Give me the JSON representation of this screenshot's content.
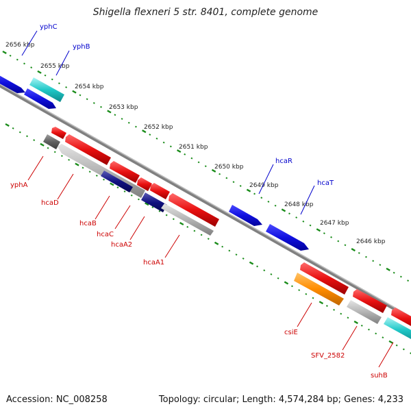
{
  "title": "Shigella flexneri 5 str. 8401, complete genome",
  "footer": {
    "accession": "Accession: NC_008258",
    "topology": "Topology: circular; Length: 4,574,284 bp; Genes: 4,233"
  },
  "colors": {
    "backbone": "#808080",
    "ruler": "#1a8c1a",
    "forward_label": "#0000cc",
    "reverse_label": "#cc0000",
    "gene_blue": "#1010e0",
    "gene_cyan": "#20c8c8",
    "gene_red": "#e81010",
    "gene_gray": "#a0a0a0",
    "gene_darkgray": "#606060",
    "gene_navy": "#101080",
    "gene_orange": "#ff8c00"
  },
  "ruler_labels": [
    "2656 kbp",
    "2655 kbp",
    "2654 kbp",
    "2653 kbp",
    "2652 kbp",
    "2651 kbp",
    "2650 kbp",
    "2649 kbp",
    "2648 kbp",
    "2647 kbp",
    "2646 kbp"
  ],
  "forward_genes": [
    {
      "label": "yphC",
      "color": "blue"
    },
    {
      "label": "yphB",
      "color": "cyan"
    },
    {
      "label": "hcaR",
      "color": "blue"
    },
    {
      "label": "hcaT",
      "color": "blue"
    }
  ],
  "reverse_genes": [
    {
      "label": "yphA",
      "color": "darkgray"
    },
    {
      "label": "hcaD",
      "color": "gray"
    },
    {
      "label": "hcaB",
      "color": "navy"
    },
    {
      "label": "hcaC",
      "color": "red"
    },
    {
      "label": "hcaA2",
      "color": "navy"
    },
    {
      "label": "hcaA1",
      "color": "red"
    },
    {
      "label": "csiE",
      "color": "orange"
    },
    {
      "label": "SFV_2582",
      "color": "gray"
    },
    {
      "label": "suhB",
      "color": "cyan"
    }
  ]
}
